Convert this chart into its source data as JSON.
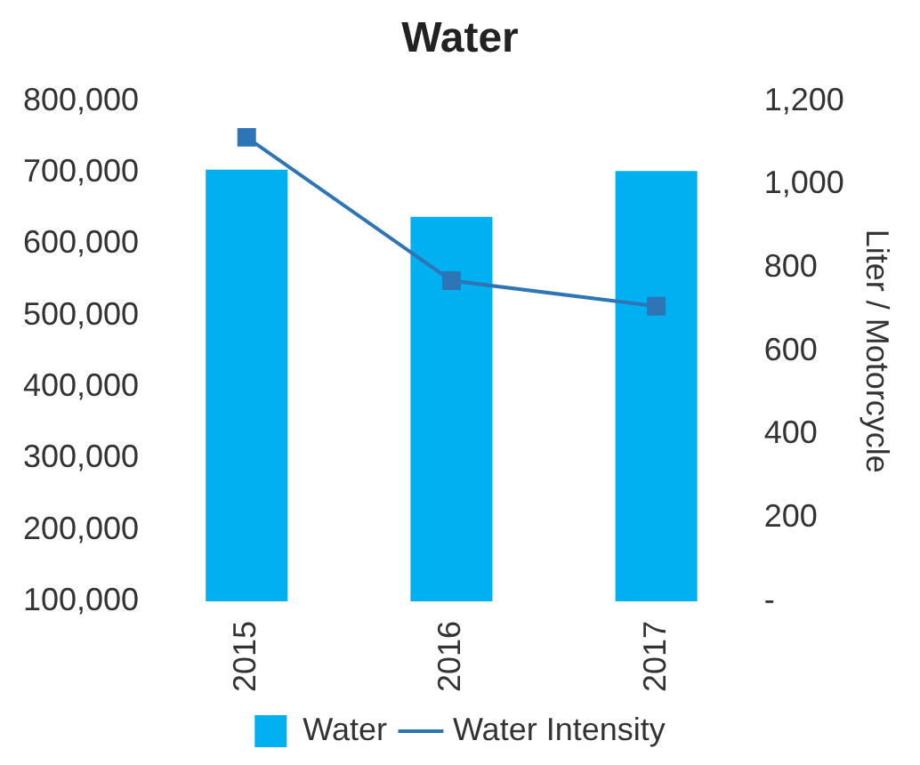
{
  "chart_data": {
    "type": "bar",
    "title": "Water",
    "y2label": "Liter / Motorcycle",
    "categories": [
      "2015",
      "2016",
      "2017"
    ],
    "series": [
      {
        "name": "Water",
        "color": "#00b0f0",
        "values": [
          704000,
          638000,
          702000
        ]
      },
      {
        "name": "Water Intensity",
        "type": "line",
        "axis": "y2",
        "color": "#2e75b6",
        "values": [
          1113,
          769,
          708
        ]
      }
    ],
    "ylim": [
      100000,
      800000
    ],
    "yticks": [
      {
        "value": 100000,
        "label": "100,000"
      },
      {
        "value": 200000,
        "label": "200,000"
      },
      {
        "value": 300000,
        "label": "300,000"
      },
      {
        "value": 400000,
        "label": "400,000"
      },
      {
        "value": 500000,
        "label": "500,000"
      },
      {
        "value": 600000,
        "label": "600,000"
      },
      {
        "value": 700000,
        "label": "700,000"
      },
      {
        "value": 800000,
        "label": "800,000"
      }
    ],
    "y2lim": [
      0,
      1200
    ],
    "y2ticks": [
      {
        "value": 0,
        "label": "-"
      },
      200,
      400,
      600,
      800,
      {
        "value": 1000,
        "label": "1,000"
      },
      {
        "value": 1200,
        "label": "1,200"
      }
    ],
    "grid": false,
    "legend": "bottom",
    "marker": "square",
    "line_style": "solid"
  }
}
